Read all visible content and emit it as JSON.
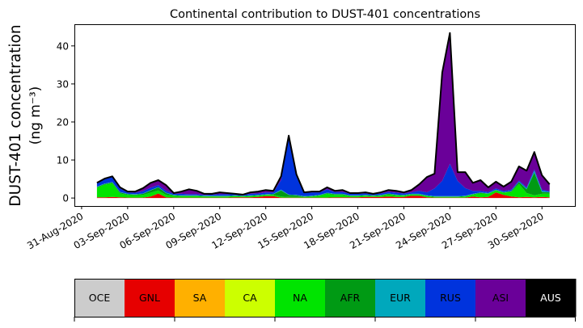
{
  "chart_data": {
    "type": "area",
    "stacked": true,
    "title": "Continental contribution to DUST-401 concentrations",
    "ylabel_line1": "DUST-401 concentration",
    "ylabel_line2": "(ng m⁻³)",
    "xlabel": "",
    "x_start": "2020-09-01 00:00",
    "x_step_hours": 12,
    "xlim_days_from_31_aug": [
      -0.47,
      32.2
    ],
    "ylim": [
      -2.1,
      45.7
    ],
    "yticks": [
      0,
      10,
      20,
      30,
      40
    ],
    "ytick_labels": [
      "0",
      "10",
      "20",
      "30",
      "40"
    ],
    "xtick_labels": [
      "31-Aug-2020",
      "03-Sep-2020",
      "06-Sep-2020",
      "09-Sep-2020",
      "12-Sep-2020",
      "15-Sep-2020",
      "18-Sep-2020",
      "21-Sep-2020",
      "24-Sep-2020",
      "27-Sep-2020",
      "30-Sep-2020"
    ],
    "xtick_days_from_31_aug": [
      0,
      3,
      6,
      9,
      12,
      15,
      18,
      21,
      24,
      27,
      30
    ],
    "total_line_color": "#000000",
    "series": [
      {
        "name": "OCE",
        "color": "#cccccc",
        "values": [
          0,
          0,
          0,
          0,
          0,
          0,
          0,
          0,
          0,
          0,
          0,
          0,
          0,
          0,
          0,
          0,
          0,
          0,
          0,
          0,
          0,
          0,
          0,
          0,
          0,
          0,
          0,
          0,
          0,
          0,
          0,
          0,
          0,
          0,
          0,
          0,
          0,
          0,
          0,
          0,
          0,
          0,
          0,
          0,
          0,
          0,
          0,
          0,
          0,
          0,
          0,
          0,
          0,
          0,
          0,
          0,
          0,
          0,
          0,
          0
        ]
      },
      {
        "name": "GNL",
        "color": "#e60000",
        "values": [
          0.2,
          0.2,
          0.3,
          0.2,
          0.1,
          0.1,
          0.1,
          0.4,
          1.2,
          0.2,
          0.1,
          0.1,
          0.1,
          0.1,
          0.1,
          0.1,
          0.1,
          0.1,
          0.2,
          0.2,
          0.2,
          0.3,
          0.5,
          0.5,
          0.1,
          0.1,
          0.1,
          0.1,
          0.1,
          0.1,
          0.1,
          0.2,
          0.2,
          0.2,
          0.2,
          0.3,
          0.3,
          0.3,
          0.4,
          0.3,
          0.3,
          0.6,
          0.6,
          0.2,
          0.1,
          0.1,
          0.1,
          0.1,
          0.1,
          0.4,
          0.2,
          0.3,
          1.5,
          0.8,
          0.4,
          0.2,
          0.3,
          0.2,
          0.3,
          0.2
        ]
      },
      {
        "name": "SA",
        "color": "#ffb000",
        "values": [
          0,
          0,
          0,
          0,
          0,
          0,
          0,
          0,
          0,
          0,
          0,
          0,
          0,
          0,
          0,
          0,
          0,
          0,
          0,
          0,
          0,
          0,
          0,
          0,
          0,
          0,
          0,
          0,
          0,
          0,
          0,
          0,
          0,
          0,
          0,
          0,
          0,
          0,
          0,
          0,
          0,
          0,
          0,
          0,
          0,
          0,
          0,
          0,
          0,
          0,
          0,
          0,
          0,
          0,
          0,
          0,
          0,
          0,
          0,
          0
        ]
      },
      {
        "name": "CA",
        "color": "#ccff00",
        "values": [
          0,
          0,
          0,
          0,
          0,
          0,
          0,
          0,
          0,
          0,
          0,
          0,
          0,
          0,
          0,
          0,
          0,
          0,
          0,
          0,
          0,
          0,
          0,
          0,
          0,
          0,
          0,
          0,
          0,
          0,
          0,
          0,
          0,
          0,
          0,
          0,
          0,
          0,
          0,
          0,
          0,
          0,
          0,
          0,
          0,
          0,
          0,
          0,
          0,
          0,
          0,
          0,
          0,
          0,
          0,
          0,
          0,
          0,
          0,
          0
        ]
      },
      {
        "name": "NA",
        "color": "#00e400",
        "values": [
          2.5,
          3.3,
          3.6,
          1.0,
          0.7,
          0.6,
          0.7,
          1.0,
          0.8,
          0.6,
          0.5,
          0.4,
          0.4,
          0.4,
          0.3,
          0.3,
          0.3,
          0.3,
          0.3,
          0.2,
          0.3,
          0.3,
          0.3,
          0.3,
          0.3,
          0.2,
          0.2,
          0.2,
          0.3,
          0.5,
          1.0,
          0.6,
          0.6,
          0.3,
          0.3,
          0.3,
          0.2,
          0.3,
          0.5,
          0.4,
          0.3,
          0.3,
          0.3,
          0.3,
          0.2,
          0.2,
          0.2,
          0.2,
          0.3,
          0.5,
          1.0,
          0.8,
          0.5,
          0.6,
          1.2,
          3.5,
          1.0,
          0.5,
          0.8,
          1.0
        ]
      },
      {
        "name": "AFR",
        "color": "#009a14",
        "values": [
          0.2,
          0.2,
          0.2,
          0.3,
          0.2,
          0.2,
          0.3,
          0.6,
          0.8,
          0.5,
          0.1,
          0.1,
          0.1,
          0.1,
          0.1,
          0.1,
          0.1,
          0.1,
          0.1,
          0.1,
          0.1,
          0.1,
          0.1,
          0.2,
          1.6,
          0.5,
          0.4,
          0.1,
          0.1,
          0.1,
          0.2,
          0.2,
          0.2,
          0.1,
          0.1,
          0.1,
          0.1,
          0.1,
          0.2,
          0.1,
          0.1,
          0.1,
          0.1,
          0.1,
          0.1,
          0.1,
          0.1,
          0.1,
          0.1,
          0.1,
          0.2,
          0.1,
          0.1,
          0.1,
          0.2,
          0.5,
          1.0,
          6.0,
          0.5,
          0.3
        ]
      },
      {
        "name": "EUR",
        "color": "#00a8bc",
        "values": [
          0.1,
          0.1,
          0.1,
          0.1,
          0.1,
          0.1,
          0.1,
          0.1,
          0.1,
          0.1,
          0.1,
          0.1,
          0.1,
          0.1,
          0.1,
          0.1,
          0.1,
          0.1,
          0.1,
          0.1,
          0.1,
          0.1,
          0.1,
          0.1,
          0.2,
          0.1,
          0.1,
          0.1,
          0.1,
          0.1,
          0.1,
          0.1,
          0.1,
          0.1,
          0.1,
          0.1,
          0.1,
          0.1,
          0.1,
          0.1,
          0.1,
          0.1,
          0.1,
          0.1,
          0.1,
          0.1,
          0.1,
          0.1,
          0.1,
          0.1,
          0.1,
          0.1,
          0.1,
          0.1,
          0.1,
          0.1,
          0.2,
          0.5,
          0.3,
          0.1
        ]
      },
      {
        "name": "RUS",
        "color": "#0033dd",
        "values": [
          1.0,
          1.2,
          1.4,
          0.9,
          0.4,
          0.4,
          0.6,
          0.6,
          0.5,
          0.5,
          0.3,
          0.4,
          0.3,
          0.3,
          0.2,
          0.3,
          0.4,
          0.4,
          0.3,
          0.2,
          0.4,
          0.4,
          0.5,
          0.4,
          2.5,
          15.0,
          4.9,
          0.9,
          0.9,
          0.7,
          0.9,
          0.5,
          0.5,
          0.4,
          0.4,
          0.4,
          0.3,
          0.4,
          0.4,
          0.5,
          0.4,
          0.4,
          0.8,
          0.8,
          2.0,
          4.0,
          8.5,
          4.0,
          2.0,
          0.8,
          0.4,
          0.3,
          0.3,
          0.3,
          0.3,
          0.3,
          0.3,
          0.3,
          0.3,
          0.2
        ]
      },
      {
        "name": "ASI",
        "color": "#6a0099",
        "values": [
          0.0,
          0.1,
          0.1,
          0.3,
          0.2,
          0.3,
          0.8,
          1.3,
          1.3,
          1.5,
          0.2,
          0.6,
          1.3,
          0.9,
          0.3,
          0.2,
          0.5,
          0.3,
          0.1,
          0.1,
          0.4,
          0.5,
          0.6,
          0.4,
          1.0,
          0.5,
          0.5,
          0.1,
          0.2,
          0.2,
          0.5,
          0.3,
          0.5,
          0.2,
          0.2,
          0.3,
          0.1,
          0.3,
          0.5,
          0.5,
          0.3,
          0.6,
          1.7,
          4.0,
          3.9,
          28.5,
          34.4,
          2.3,
          4.2,
          2.1,
          2.8,
          1.2,
          1.8,
          1.1,
          2.1,
          3.7,
          4.4,
          4.6,
          3.8,
          1.8
        ]
      },
      {
        "name": "AUS",
        "color": "#000000",
        "values": [
          0,
          0,
          0,
          0,
          0,
          0,
          0,
          0,
          0,
          0,
          0,
          0,
          0,
          0,
          0,
          0,
          0,
          0,
          0,
          0,
          0,
          0,
          0,
          0,
          0,
          0,
          0,
          0,
          0,
          0,
          0,
          0,
          0,
          0,
          0,
          0,
          0,
          0,
          0,
          0,
          0,
          0,
          0,
          0,
          0,
          0,
          0,
          0,
          0,
          0,
          0,
          0,
          0,
          0,
          0,
          0,
          0,
          0,
          0,
          0
        ]
      }
    ],
    "legend": {
      "placement": "bottom colorbar",
      "labels": [
        "OCE",
        "GNL",
        "SA",
        "CA",
        "NA",
        "AFR",
        "EUR",
        "RUS",
        "ASI",
        "AUS"
      ],
      "label_colors": [
        "#000000",
        "#000000",
        "#000000",
        "#000000",
        "#000000",
        "#000000",
        "#000000",
        "#000000",
        "#000000",
        "#ffffff"
      ]
    }
  }
}
